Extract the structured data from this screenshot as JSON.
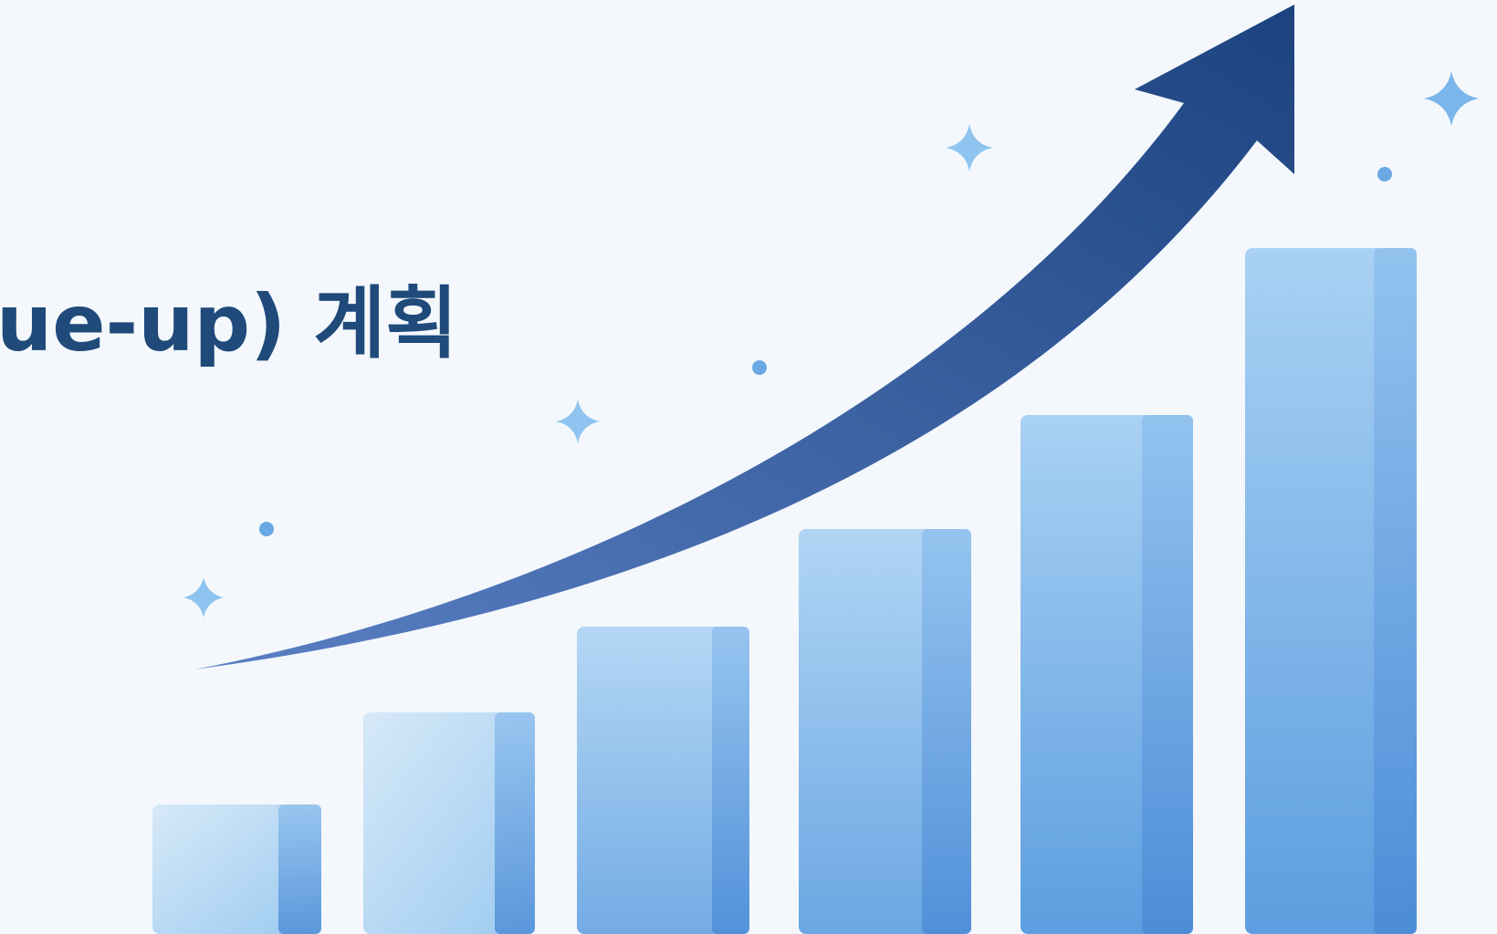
{
  "header": {
    "title": "ue-up) 계획"
  }
}
